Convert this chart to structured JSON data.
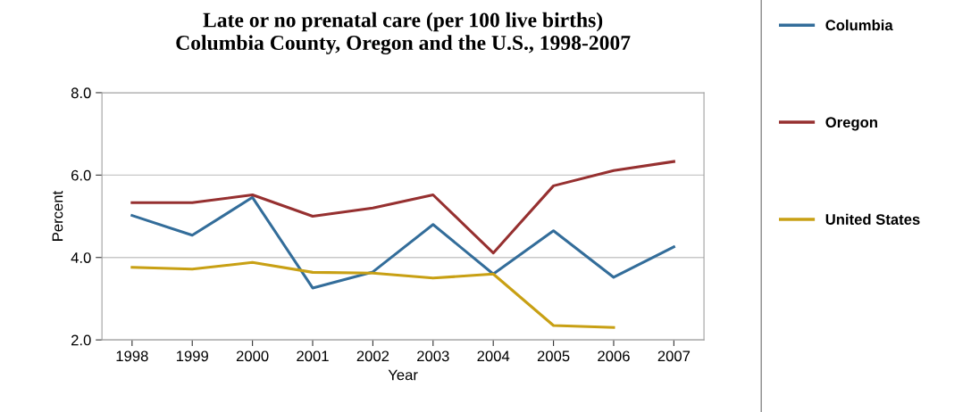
{
  "chart_data": {
    "type": "line",
    "title": "Late or no prenatal care (per 100 live births)\nColumbia County, Oregon and the U.S., 1998-2007",
    "xlabel": "Year",
    "ylabel": "Percent",
    "categories": [
      "1998",
      "1999",
      "2000",
      "2001",
      "2002",
      "2003",
      "2004",
      "2005",
      "2006",
      "2007"
    ],
    "series": [
      {
        "name": "Columbia",
        "color": "#336d9a",
        "values": [
          5.02,
          4.54,
          5.46,
          3.26,
          3.65,
          4.8,
          3.6,
          4.65,
          3.52,
          4.26
        ]
      },
      {
        "name": "Oregon",
        "color": "#963030",
        "values": [
          5.33,
          5.33,
          5.52,
          5.0,
          5.2,
          5.52,
          4.11,
          5.74,
          6.11,
          6.33
        ]
      },
      {
        "name": "United States",
        "color": "#c8a014",
        "values": [
          3.76,
          3.72,
          3.88,
          3.64,
          3.62,
          3.5,
          3.6,
          2.35,
          2.3,
          null
        ]
      }
    ],
    "ylim": [
      2,
      8
    ],
    "yticks": [
      {
        "value": 2,
        "label": "2.0"
      },
      {
        "value": 4,
        "label": "4.0"
      },
      {
        "value": 6,
        "label": "6.0"
      },
      {
        "value": 8,
        "label": "8.0"
      }
    ],
    "grid": "y",
    "legend": "right",
    "marker": "none",
    "line_style": "solid"
  }
}
